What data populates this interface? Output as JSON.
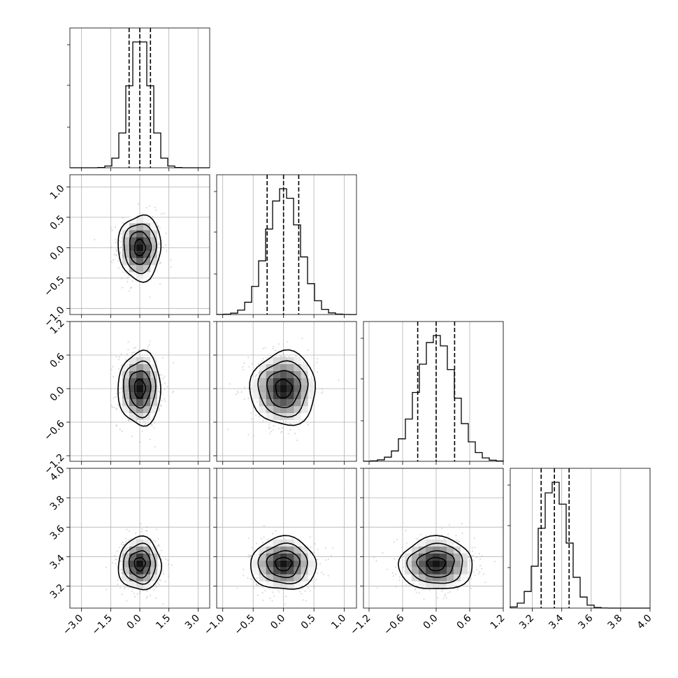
{
  "chart_data": {
    "type": "corner",
    "n_params": 4,
    "grid": true,
    "quantiles": [
      0.16,
      0.5,
      0.84
    ],
    "params": [
      {
        "range": [
          -3.6,
          3.6
        ],
        "mean": 0.0,
        "std": 0.55,
        "q16": -0.55,
        "q50": 0.0,
        "q84": 0.55,
        "ticks": [
          -3.0,
          -1.5,
          0.0,
          1.5,
          3.0
        ],
        "tick_labels": [
          "−3.0",
          "−1.5",
          "0.0",
          "1.5",
          "3.0"
        ]
      },
      {
        "range": [
          -1.1,
          1.2
        ],
        "mean": 0.0,
        "std": 0.27,
        "q16": -0.27,
        "q50": 0.0,
        "q84": 0.25,
        "ticks": [
          -1.0,
          -0.5,
          0.0,
          0.5,
          1.0
        ],
        "tick_labels": [
          "−1.0",
          "−0.5",
          "0.0",
          "0.5",
          "1.0"
        ]
      },
      {
        "range": [
          -1.3,
          1.2
        ],
        "mean": 0.0,
        "std": 0.33,
        "q16": -0.33,
        "q50": 0.0,
        "q84": 0.33,
        "ticks": [
          -1.2,
          -0.6,
          0.0,
          0.6,
          1.2
        ],
        "tick_labels": [
          "−1.2",
          "−0.6",
          "0.0",
          "0.6",
          "1.2"
        ]
      },
      {
        "range": [
          3.05,
          4.0
        ],
        "mean": 3.35,
        "std": 0.09,
        "q16": 3.26,
        "q50": 3.35,
        "q84": 3.45,
        "ticks": [
          3.2,
          3.4,
          3.6,
          3.8,
          4.0
        ],
        "tick_labels": [
          "3.2",
          "3.4",
          "3.6",
          "3.8",
          "4.0"
        ]
      }
    ],
    "contour_levels_sigma": [
      0.5,
      1.0,
      1.5,
      2.0
    ]
  }
}
